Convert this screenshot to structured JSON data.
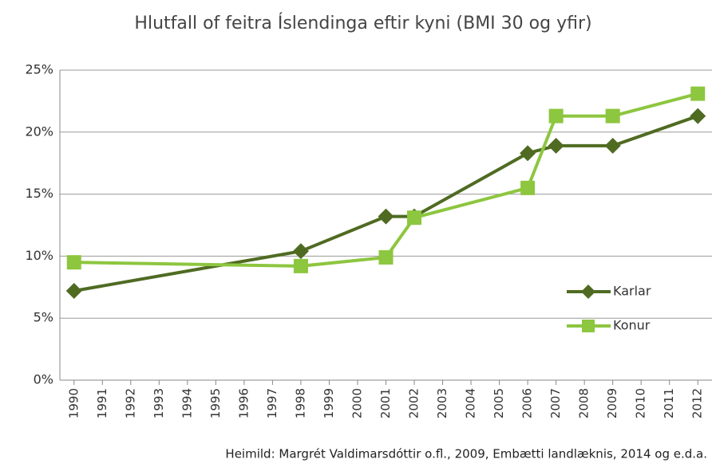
{
  "chart_data": {
    "type": "line",
    "title": "Hlutfall of feitra Íslendinga eftir kyni (BMI 30 og yfir)",
    "source": "Heimild: Margrét Valdimarsdóttir o.fl., 2009, Embætti landlæknis, 2014 og e.d.a.",
    "x": [
      1990,
      1998,
      2001,
      2002,
      2006,
      2007,
      2009,
      2012
    ],
    "series": [
      {
        "name": "Karlar",
        "color": "#4f6b22",
        "marker": "diamond",
        "values": [
          7.2,
          10.4,
          13.2,
          13.2,
          18.3,
          18.9,
          18.9,
          21.3
        ]
      },
      {
        "name": "Konur",
        "color": "#8dc63f",
        "marker": "square",
        "values": [
          9.5,
          9.2,
          9.9,
          13.1,
          15.5,
          21.3,
          21.3,
          23.1
        ]
      }
    ],
    "xlim": [
      1989.5,
      2012.5
    ],
    "xticks": [
      1990,
      1991,
      1992,
      1993,
      1994,
      1995,
      1996,
      1997,
      1998,
      1999,
      2000,
      2001,
      2002,
      2003,
      2004,
      2005,
      2006,
      2007,
      2008,
      2009,
      2010,
      2011,
      2012
    ],
    "ylim": [
      0,
      25
    ],
    "yticks": [
      {
        "value": 0,
        "label": "0%"
      },
      {
        "value": 5,
        "label": "5%"
      },
      {
        "value": 10,
        "label": "10%"
      },
      {
        "value": 15,
        "label": "15%"
      },
      {
        "value": 20,
        "label": "20%"
      },
      {
        "value": 25,
        "label": "25%"
      }
    ],
    "grid": true
  }
}
